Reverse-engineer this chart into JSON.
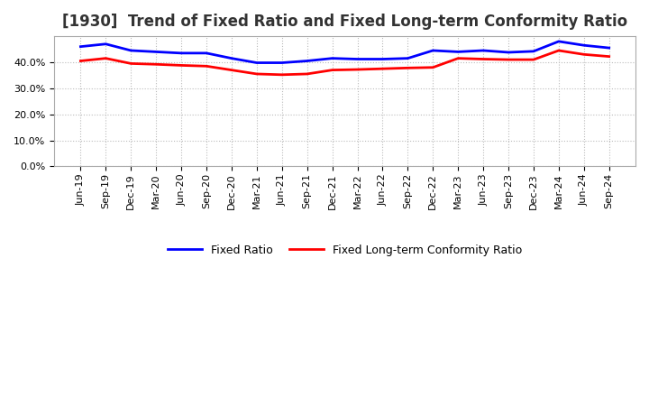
{
  "title": "[1930]  Trend of Fixed Ratio and Fixed Long-term Conformity Ratio",
  "x_labels": [
    "Jun-19",
    "Sep-19",
    "Dec-19",
    "Mar-20",
    "Jun-20",
    "Sep-20",
    "Dec-20",
    "Mar-21",
    "Jun-21",
    "Sep-21",
    "Dec-21",
    "Mar-22",
    "Jun-22",
    "Sep-22",
    "Dec-22",
    "Mar-23",
    "Jun-23",
    "Sep-23",
    "Dec-23",
    "Mar-24",
    "Jun-24",
    "Sep-24"
  ],
  "fixed_ratio": [
    46.0,
    47.0,
    44.5,
    44.0,
    43.5,
    43.5,
    41.5,
    39.8,
    39.8,
    40.5,
    41.5,
    41.2,
    41.2,
    41.5,
    44.5,
    44.0,
    44.5,
    43.8,
    44.2,
    48.0,
    46.5,
    45.5
  ],
  "fixed_lt_ratio": [
    40.5,
    41.5,
    39.5,
    39.2,
    38.8,
    38.5,
    37.0,
    35.5,
    35.2,
    35.5,
    37.0,
    37.2,
    37.5,
    37.8,
    38.0,
    41.5,
    41.2,
    41.0,
    41.0,
    44.5,
    43.0,
    42.2
  ],
  "fixed_ratio_color": "#0000FF",
  "fixed_lt_ratio_color": "#FF0000",
  "background_color": "#FFFFFF",
  "plot_bg_color": "#FFFFFF",
  "grid_color": "#BBBBBB",
  "ylim": [
    0,
    50
  ],
  "yticks": [
    0,
    10,
    20,
    30,
    40
  ],
  "title_fontsize": 12,
  "legend_fontsize": 9,
  "tick_fontsize": 8,
  "line_width": 2.0
}
